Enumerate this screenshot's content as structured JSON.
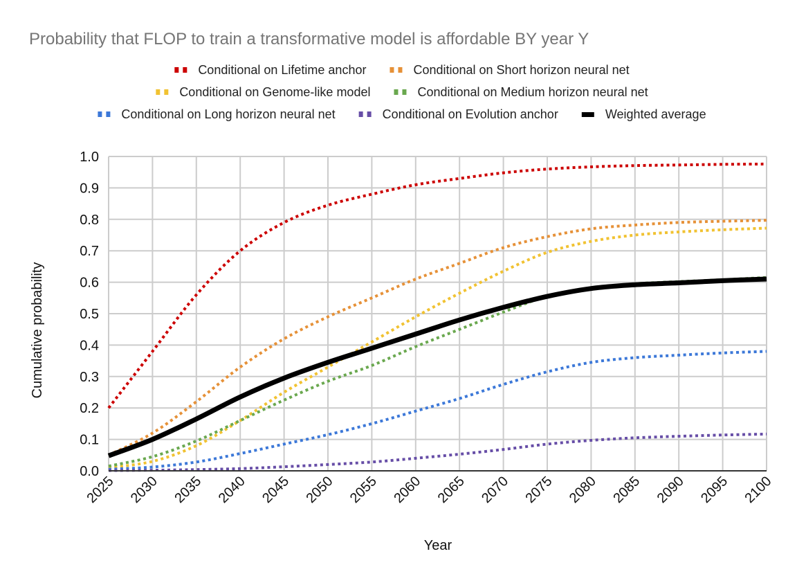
{
  "chart_data": {
    "type": "line",
    "title": "Probability that FLOP to train a transformative model is affordable BY year Y",
    "xlabel": "Year",
    "ylabel": "Cumulative probability",
    "xlim": [
      2025,
      2100
    ],
    "ylim": [
      0,
      1
    ],
    "grid": true,
    "legend_position": "top",
    "x": [
      2025,
      2030,
      2035,
      2040,
      2045,
      2050,
      2055,
      2060,
      2065,
      2070,
      2075,
      2080,
      2085,
      2090,
      2095,
      2100
    ],
    "x_tick_labels": [
      "2025",
      "2030",
      "2035",
      "2040",
      "2045",
      "2050",
      "2055",
      "2060",
      "2065",
      "2070",
      "2075",
      "2080",
      "2085",
      "2090",
      "2095",
      "2100"
    ],
    "y_tick_labels": [
      "0.0",
      "0.1",
      "0.2",
      "0.3",
      "0.4",
      "0.5",
      "0.6",
      "0.7",
      "0.8",
      "0.9",
      "1.0"
    ],
    "series": [
      {
        "name": "Conditional on Lifetime anchor",
        "color": "#cc0000",
        "style": "dotted",
        "values": [
          0.2,
          0.38,
          0.56,
          0.7,
          0.79,
          0.845,
          0.88,
          0.91,
          0.93,
          0.948,
          0.96,
          0.967,
          0.971,
          0.973,
          0.975,
          0.976
        ]
      },
      {
        "name": "Conditional on Short horizon neural net",
        "color": "#e69138",
        "style": "dotted",
        "values": [
          0.05,
          0.12,
          0.22,
          0.33,
          0.42,
          0.49,
          0.55,
          0.61,
          0.66,
          0.71,
          0.745,
          0.77,
          0.782,
          0.79,
          0.794,
          0.797
        ]
      },
      {
        "name": "Conditional on Genome-like model",
        "color": "#f1c232",
        "style": "dotted",
        "values": [
          0.01,
          0.03,
          0.08,
          0.16,
          0.25,
          0.33,
          0.41,
          0.49,
          0.565,
          0.635,
          0.695,
          0.73,
          0.75,
          0.76,
          0.767,
          0.772
        ]
      },
      {
        "name": "Conditional on Medium horizon neural net",
        "color": "#6aa84f",
        "style": "dotted",
        "values": [
          0.015,
          0.045,
          0.095,
          0.16,
          0.225,
          0.285,
          0.335,
          0.395,
          0.45,
          0.505,
          0.555,
          0.58,
          0.595,
          0.602,
          0.608,
          0.615
        ]
      },
      {
        "name": "Conditional on Long horizon neural net",
        "color": "#3c78d8",
        "style": "dotted",
        "values": [
          0.005,
          0.012,
          0.028,
          0.055,
          0.085,
          0.115,
          0.15,
          0.19,
          0.23,
          0.275,
          0.315,
          0.345,
          0.36,
          0.368,
          0.375,
          0.38
        ]
      },
      {
        "name": "Conditional on Evolution anchor",
        "color": "#674ea7",
        "style": "dotted",
        "values": [
          0.001,
          0.002,
          0.004,
          0.007,
          0.013,
          0.02,
          0.028,
          0.04,
          0.053,
          0.068,
          0.085,
          0.097,
          0.105,
          0.11,
          0.114,
          0.117
        ]
      },
      {
        "name": "Weighted average",
        "color": "#000000",
        "style": "solid",
        "values": [
          0.048,
          0.1,
          0.165,
          0.235,
          0.295,
          0.345,
          0.39,
          0.435,
          0.48,
          0.52,
          0.555,
          0.58,
          0.592,
          0.598,
          0.605,
          0.61
        ]
      }
    ]
  }
}
